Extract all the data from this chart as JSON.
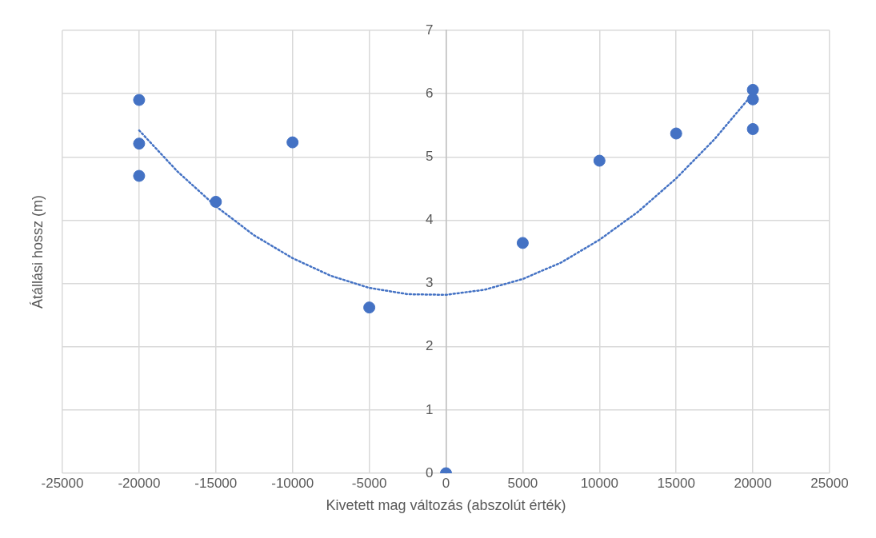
{
  "chart_data": {
    "type": "scatter",
    "xlabel": "Kivetett mag változás (abszolút érték)",
    "ylabel": "Átállási hossz (m)",
    "xlim": [
      -25000,
      25000
    ],
    "xticks": [
      -25000,
      -20000,
      -15000,
      -10000,
      -5000,
      0,
      5000,
      10000,
      15000,
      20000,
      25000
    ],
    "ylim": [
      0,
      7
    ],
    "yticks": [
      0,
      1,
      2,
      3,
      4,
      5,
      6,
      7
    ],
    "grid": true,
    "legend": false,
    "series": [
      {
        "type": "scatter",
        "color": "#4472c4",
        "marker": "circle",
        "x": [
          -20000,
          -20000,
          -20000,
          -15000,
          -10000,
          -5000,
          0,
          5000,
          10000,
          15000,
          20000,
          20000,
          20000
        ],
        "values": [
          5.9,
          5.21,
          4.7,
          4.29,
          5.23,
          2.62,
          0,
          3.64,
          4.94,
          5.37,
          6.06,
          5.91,
          5.44
        ]
      },
      {
        "type": "line",
        "color": "#4472c4",
        "marker": "none",
        "line_style": "dotted",
        "x": [
          -20000,
          -17500,
          -15000,
          -12500,
          -10000,
          -7500,
          -5000,
          -2500,
          0,
          2500,
          5000,
          7500,
          10000,
          12500,
          15000,
          17500,
          20000
        ],
        "values": [
          5.42,
          4.77,
          4.22,
          3.76,
          3.4,
          3.12,
          2.93,
          2.83,
          2.82,
          2.9,
          3.07,
          3.33,
          3.69,
          4.13,
          4.66,
          5.28,
          6.0
        ]
      }
    ]
  }
}
